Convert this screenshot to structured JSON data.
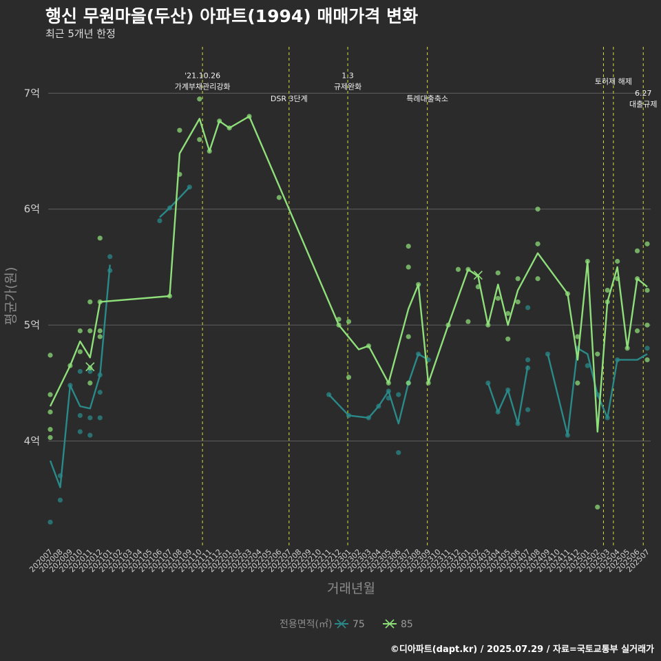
{
  "header": {
    "title": "행신 무원마을(두산) 아파트(1994) 매매가격 변화",
    "subtitle": "최근 5개년 한정"
  },
  "caption": "©디아파트(dapt.kr) / 2025.07.29 / 자료=국토교통부 실거래가",
  "colors": {
    "s75": "#2a8a8a",
    "s85": "#8fe07a",
    "event": "#d8e03a",
    "grid": "#5f5f5f"
  },
  "chart_data": {
    "type": "line",
    "xlabel": "거래년월",
    "ylabel": "평균가(원)",
    "ylim": [
      3.1,
      7.4
    ],
    "yticks": [
      4,
      5,
      6,
      7
    ],
    "ytick_labels": [
      "4억",
      "5억",
      "6억",
      "7억"
    ],
    "x": [
      "202007",
      "202008",
      "202009",
      "202010",
      "202011",
      "202012",
      "202101",
      "202102",
      "202103",
      "202104",
      "202105",
      "202106",
      "202107",
      "202108",
      "202109",
      "202110",
      "202111",
      "202112",
      "202201",
      "202202",
      "202203",
      "202204",
      "202205",
      "202206",
      "202207",
      "202208",
      "202209",
      "202210",
      "202211",
      "202212",
      "202301",
      "202302",
      "202303",
      "202304",
      "202305",
      "202306",
      "202307",
      "202308",
      "202309",
      "202310",
      "202311",
      "202312",
      "202401",
      "202402",
      "202403",
      "202404",
      "202405",
      "202406",
      "202407",
      "202408",
      "202409",
      "202410",
      "202411",
      "202412",
      "202501",
      "202502",
      "202503",
      "202504",
      "202505",
      "202506",
      "202507"
    ],
    "legend": {
      "title": "전용면적(㎡)",
      "position": "bottom"
    },
    "events": [
      {
        "x": 15.3,
        "lines": [
          "'21.10.26",
          "가계부채관리강화"
        ],
        "y": 7.1
      },
      {
        "x": 24,
        "lines": [
          "DSR 3단계"
        ],
        "y": 6.9
      },
      {
        "x": 29.9,
        "lines": [
          "1.3",
          "규제완화"
        ],
        "y": 7.1
      },
      {
        "x": 37.9,
        "lines": [
          "특례대출축소"
        ],
        "y": 6.9
      },
      {
        "x": 55.6,
        "lines": [],
        "y": 7.0
      },
      {
        "x": 56.6,
        "lines": [
          "토허제 해제"
        ],
        "y": 7.05
      },
      {
        "x": 59.6,
        "lines": [
          "6.27",
          "대출규제"
        ],
        "y": 6.95
      }
    ],
    "series": [
      {
        "name": "75",
        "color": "#2a8a8a",
        "line": [
          [
            [
              0,
              3.83
            ],
            [
              1,
              3.6
            ],
            [
              2,
              4.48
            ],
            [
              3,
              4.3
            ],
            [
              4,
              4.28
            ],
            [
              5,
              4.57
            ],
            [
              6,
              5.52
            ]
          ],
          [
            [
              11,
              5.93
            ],
            [
              12,
              6.01
            ],
            [
              13,
              6.1
            ],
            [
              14,
              6.19
            ]
          ],
          [
            [
              28,
              4.4
            ],
            [
              30,
              4.22
            ],
            [
              32,
              4.2
            ],
            [
              33,
              4.3
            ],
            [
              34,
              4.43
            ],
            [
              35,
              4.15
            ],
            [
              36,
              4.5
            ],
            [
              37,
              4.75
            ],
            [
              38,
              4.7
            ]
          ],
          [
            [
              44,
              4.5
            ],
            [
              45,
              4.25
            ],
            [
              46,
              4.44
            ],
            [
              47,
              4.15
            ],
            [
              48,
              4.65
            ]
          ],
          [
            [
              50,
              4.75
            ],
            [
              52,
              4.05
            ],
            [
              53,
              4.8
            ],
            [
              54,
              4.75
            ],
            [
              55,
              4.4
            ],
            [
              56,
              4.2
            ],
            [
              57,
              4.7
            ],
            [
              59,
              4.7
            ],
            [
              60,
              4.75
            ]
          ]
        ],
        "points": [
          [
            0,
            3.3
          ],
          [
            1,
            3.49
          ],
          [
            1,
            3.7
          ],
          [
            2,
            4.48
          ],
          [
            3,
            4.22
          ],
          [
            3,
            4.08
          ],
          [
            3,
            4.6
          ],
          [
            4,
            4.05
          ],
          [
            4,
            4.2
          ],
          [
            4,
            4.6
          ],
          [
            5,
            4.2
          ],
          [
            5,
            4.42
          ],
          [
            5,
            4.57
          ],
          [
            6,
            5.47
          ],
          [
            6,
            5.59
          ],
          [
            11,
            5.9
          ],
          [
            12,
            6.01
          ],
          [
            14,
            6.19
          ],
          [
            28,
            4.4
          ],
          [
            30,
            4.22
          ],
          [
            32,
            4.2
          ],
          [
            33,
            4.3
          ],
          [
            34,
            4.43
          ],
          [
            34,
            4.37
          ],
          [
            35,
            4.4
          ],
          [
            35,
            3.9
          ],
          [
            36,
            4.5
          ],
          [
            37,
            4.75
          ],
          [
            38,
            4.7
          ],
          [
            44,
            4.5
          ],
          [
            45,
            4.25
          ],
          [
            46,
            4.44
          ],
          [
            47,
            4.15
          ],
          [
            48,
            4.63
          ],
          [
            48,
            4.7
          ],
          [
            48,
            4.27
          ],
          [
            48,
            5.15
          ],
          [
            50,
            4.75
          ],
          [
            52,
            4.05
          ],
          [
            53,
            4.8
          ],
          [
            54,
            4.65
          ],
          [
            55,
            4.4
          ],
          [
            56,
            4.2
          ],
          [
            57,
            4.7
          ],
          [
            60,
            4.8
          ]
        ],
        "crosses": [
          [
            4,
            4.64
          ]
        ]
      },
      {
        "name": "85",
        "color": "#8fe07a",
        "line": [
          [
            [
              0,
              4.3
            ],
            [
              2,
              4.65
            ],
            [
              3,
              4.86
            ],
            [
              4,
              4.72
            ],
            [
              5,
              5.2
            ],
            [
              12,
              5.25
            ],
            [
              13,
              6.48
            ],
            [
              15,
              6.78
            ],
            [
              16,
              6.5
            ],
            [
              17,
              6.76
            ],
            [
              18,
              6.7
            ],
            [
              20,
              6.8
            ],
            [
              29,
              5.0
            ],
            [
              31,
              4.79
            ],
            [
              32,
              4.82
            ],
            [
              34,
              4.5
            ],
            [
              36,
              5.14
            ],
            [
              37,
              5.35
            ],
            [
              38,
              4.5
            ],
            [
              40,
              5.0
            ],
            [
              42,
              5.48
            ],
            [
              43,
              5.42
            ],
            [
              44,
              5.0
            ],
            [
              45,
              5.35
            ],
            [
              46,
              5.0
            ],
            [
              47,
              5.3
            ],
            [
              49,
              5.62
            ],
            [
              52,
              5.27
            ],
            [
              53,
              4.7
            ],
            [
              54,
              5.55
            ],
            [
              55,
              4.08
            ],
            [
              56,
              5.2
            ],
            [
              57,
              5.5
            ],
            [
              58,
              4.8
            ],
            [
              59,
              5.4
            ],
            [
              60,
              5.33
            ]
          ]
        ],
        "points": [
          [
            0,
            4.74
          ],
          [
            0,
            4.4
          ],
          [
            0,
            4.25
          ],
          [
            0,
            4.1
          ],
          [
            0,
            4.03
          ],
          [
            2,
            4.65
          ],
          [
            3,
            4.95
          ],
          [
            3,
            4.77
          ],
          [
            4,
            4.5
          ],
          [
            4,
            4.63
          ],
          [
            4,
            4.95
          ],
          [
            4,
            5.2
          ],
          [
            5,
            4.95
          ],
          [
            5,
            4.9
          ],
          [
            5,
            5.2
          ],
          [
            5,
            5.75
          ],
          [
            12,
            5.25
          ],
          [
            13,
            6.3
          ],
          [
            13,
            6.68
          ],
          [
            15,
            6.6
          ],
          [
            15,
            6.95
          ],
          [
            16,
            6.5
          ],
          [
            17,
            6.76
          ],
          [
            18,
            6.7
          ],
          [
            20,
            6.8
          ],
          [
            23,
            6.1
          ],
          [
            29,
            5.0
          ],
          [
            29,
            5.05
          ],
          [
            30,
            4.55
          ],
          [
            30,
            5.03
          ],
          [
            32,
            4.82
          ],
          [
            34,
            4.5
          ],
          [
            36,
            5.5
          ],
          [
            36,
            5.68
          ],
          [
            36,
            4.9
          ],
          [
            36,
            4.5
          ],
          [
            37,
            5.35
          ],
          [
            38,
            4.5
          ],
          [
            40,
            5.0
          ],
          [
            41,
            5.48
          ],
          [
            42,
            5.03
          ],
          [
            42,
            5.48
          ],
          [
            43,
            5.33
          ],
          [
            44,
            5.0
          ],
          [
            45,
            5.23
          ],
          [
            45,
            5.45
          ],
          [
            46,
            5.1
          ],
          [
            46,
            4.88
          ],
          [
            47,
            5.4
          ],
          [
            47,
            5.2
          ],
          [
            49,
            5.4
          ],
          [
            49,
            5.7
          ],
          [
            49,
            6.0
          ],
          [
            52,
            5.27
          ],
          [
            53,
            4.5
          ],
          [
            53,
            4.9
          ],
          [
            54,
            5.55
          ],
          [
            55,
            3.43
          ],
          [
            55,
            4.75
          ],
          [
            56,
            5.2
          ],
          [
            56,
            5.3
          ],
          [
            57,
            5.4
          ],
          [
            57,
            5.55
          ],
          [
            58,
            4.8
          ],
          [
            59,
            5.64
          ],
          [
            59,
            4.95
          ],
          [
            59,
            5.4
          ],
          [
            60,
            5.3
          ],
          [
            60,
            5.7
          ],
          [
            60,
            5.0
          ],
          [
            60,
            4.7
          ]
        ],
        "crosses": [
          [
            4,
            4.64
          ],
          [
            43,
            5.43
          ]
        ]
      }
    ]
  }
}
